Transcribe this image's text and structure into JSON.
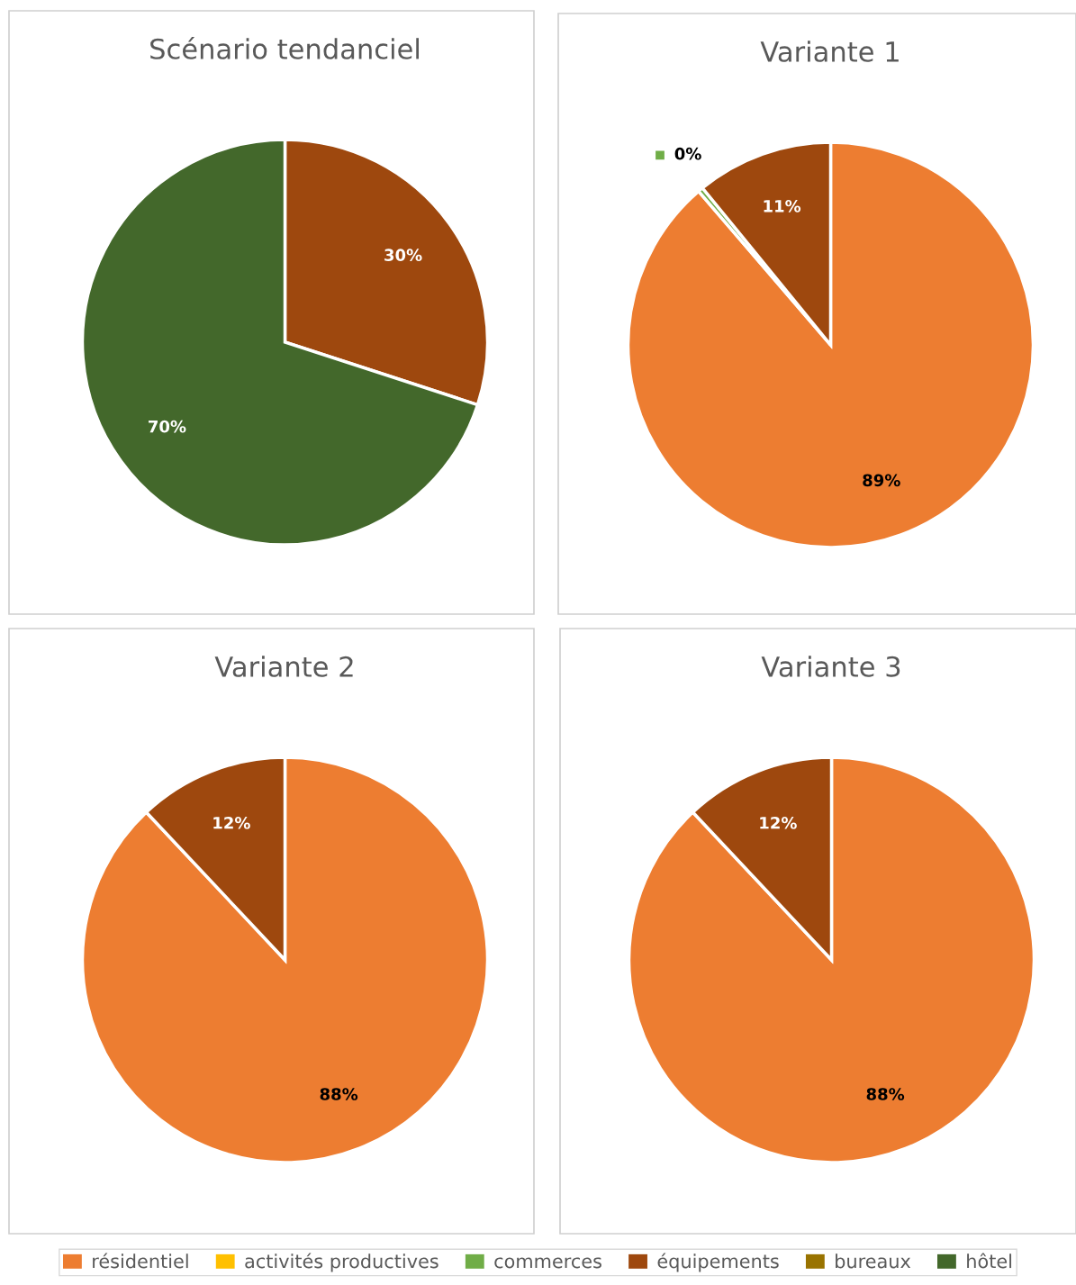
{
  "chart_data": [
    {
      "type": "pie",
      "title": "Scénario tendanciel",
      "categories": [
        "résidentiel",
        "activités productives",
        "commerces",
        "équipements",
        "bureaux",
        "hôtel"
      ],
      "values": [
        0,
        0,
        0,
        30,
        0,
        70
      ],
      "value_labels": [
        null,
        null,
        null,
        "30%",
        null,
        "70%"
      ],
      "colors": [
        "#ed7d31",
        "#ffc000",
        "#70ad47",
        "#9e480e",
        "#997300",
        "#43682b"
      ],
      "legend": "bottom"
    },
    {
      "type": "pie",
      "title": "Variante 1",
      "categories": [
        null,
        null,
        null,
        null,
        null,
        null
      ],
      "values": [
        88.7,
        0,
        0.4,
        10.9,
        0,
        0
      ],
      "value_labels": [
        "89%",
        null,
        "0%",
        "11%",
        null,
        null
      ],
      "colors": [
        "#ed7d31",
        "#ffc000",
        "#70ad47",
        "#9e480e",
        "#997300",
        "#43682b"
      ]
    },
    {
      "type": "pie",
      "title": "Variante 2",
      "categories": [
        null,
        null,
        null,
        null,
        null,
        null
      ],
      "values": [
        88,
        0,
        0,
        12,
        0,
        0
      ],
      "value_labels": [
        "88%",
        null,
        null,
        "12%",
        null,
        null
      ],
      "colors": [
        "#ed7d31",
        "#ffc000",
        "#70ad47",
        "#9e480e",
        "#997300",
        "#43682b"
      ]
    },
    {
      "type": "pie",
      "title": "Variante 3",
      "categories": [
        null,
        null,
        null,
        null,
        null,
        null
      ],
      "values": [
        88,
        0,
        0,
        12,
        0,
        0
      ],
      "value_labels": [
        "88%",
        null,
        null,
        "12%",
        null,
        null
      ],
      "colors": [
        "#ed7d31",
        "#ffc000",
        "#70ad47",
        "#9e480e",
        "#997300",
        "#43682b"
      ]
    }
  ]
}
